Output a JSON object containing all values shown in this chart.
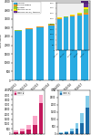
{
  "bg_color": "#ffffff",
  "main_bars": {
    "years": [
      "2010/11",
      "2011/12",
      "2012/13",
      "2013/14",
      "2014/15",
      "2015/16",
      "2016/17"
    ],
    "cyan": [
      2800,
      2900,
      3000,
      3100,
      3200,
      3300,
      3400
    ],
    "orange": [
      30,
      40,
      50,
      60,
      80,
      100,
      150
    ],
    "green": [
      10,
      20,
      30,
      40,
      60,
      120,
      350
    ],
    "yellow": [
      5,
      8,
      10,
      15,
      20,
      40,
      150
    ],
    "purple": [
      2,
      3,
      5,
      8,
      10,
      20,
      500
    ],
    "cyan_color": "#29ABE2",
    "orange_color": "#F7941D",
    "green_color": "#8DC63F",
    "yellow_color": "#FFF200",
    "purple_color": "#662D91",
    "ylim": [
      0,
      4500
    ]
  },
  "inset_bars": {
    "years": [
      "2012/13",
      "2013/14",
      "2014/15",
      "2015/16",
      "2016/17"
    ],
    "cyan": [
      3000,
      3100,
      3200,
      3300,
      3400
    ],
    "orange": [
      50,
      60,
      80,
      100,
      150
    ],
    "green": [
      30,
      40,
      60,
      120,
      350
    ],
    "yellow": [
      10,
      15,
      20,
      40,
      150
    ],
    "purple": [
      5,
      8,
      10,
      20,
      500
    ],
    "cyan_color": "#29ABE2",
    "orange_color": "#F7941D",
    "green_color": "#8DC63F",
    "yellow_color": "#FFF200",
    "purple_color": "#662D91",
    "ylim": [
      0,
      4500
    ]
  },
  "bottom_left": {
    "years": [
      "2010/11",
      "2011/12",
      "2012/13",
      "2013/14",
      "2014/15"
    ],
    "light_pink": [
      300,
      500,
      900,
      1800,
      4000
    ],
    "dark_pink": [
      100,
      200,
      400,
      900,
      3200
    ],
    "light_color": "#F9A8C9",
    "dark_color": "#C2185B",
    "ylim": [
      0,
      4500
    ]
  },
  "bottom_right": {
    "years": [
      "2010/11",
      "2011/12",
      "2012/13",
      "2013/14",
      "2014/15",
      "2015/16"
    ],
    "light_blue": [
      80,
      180,
      350,
      700,
      1400,
      2600
    ],
    "dark_blue": [
      30,
      80,
      160,
      350,
      700,
      1800
    ],
    "light_color": "#87CEEB",
    "dark_color": "#1B6CA8",
    "ylim": [
      0,
      3000
    ]
  }
}
